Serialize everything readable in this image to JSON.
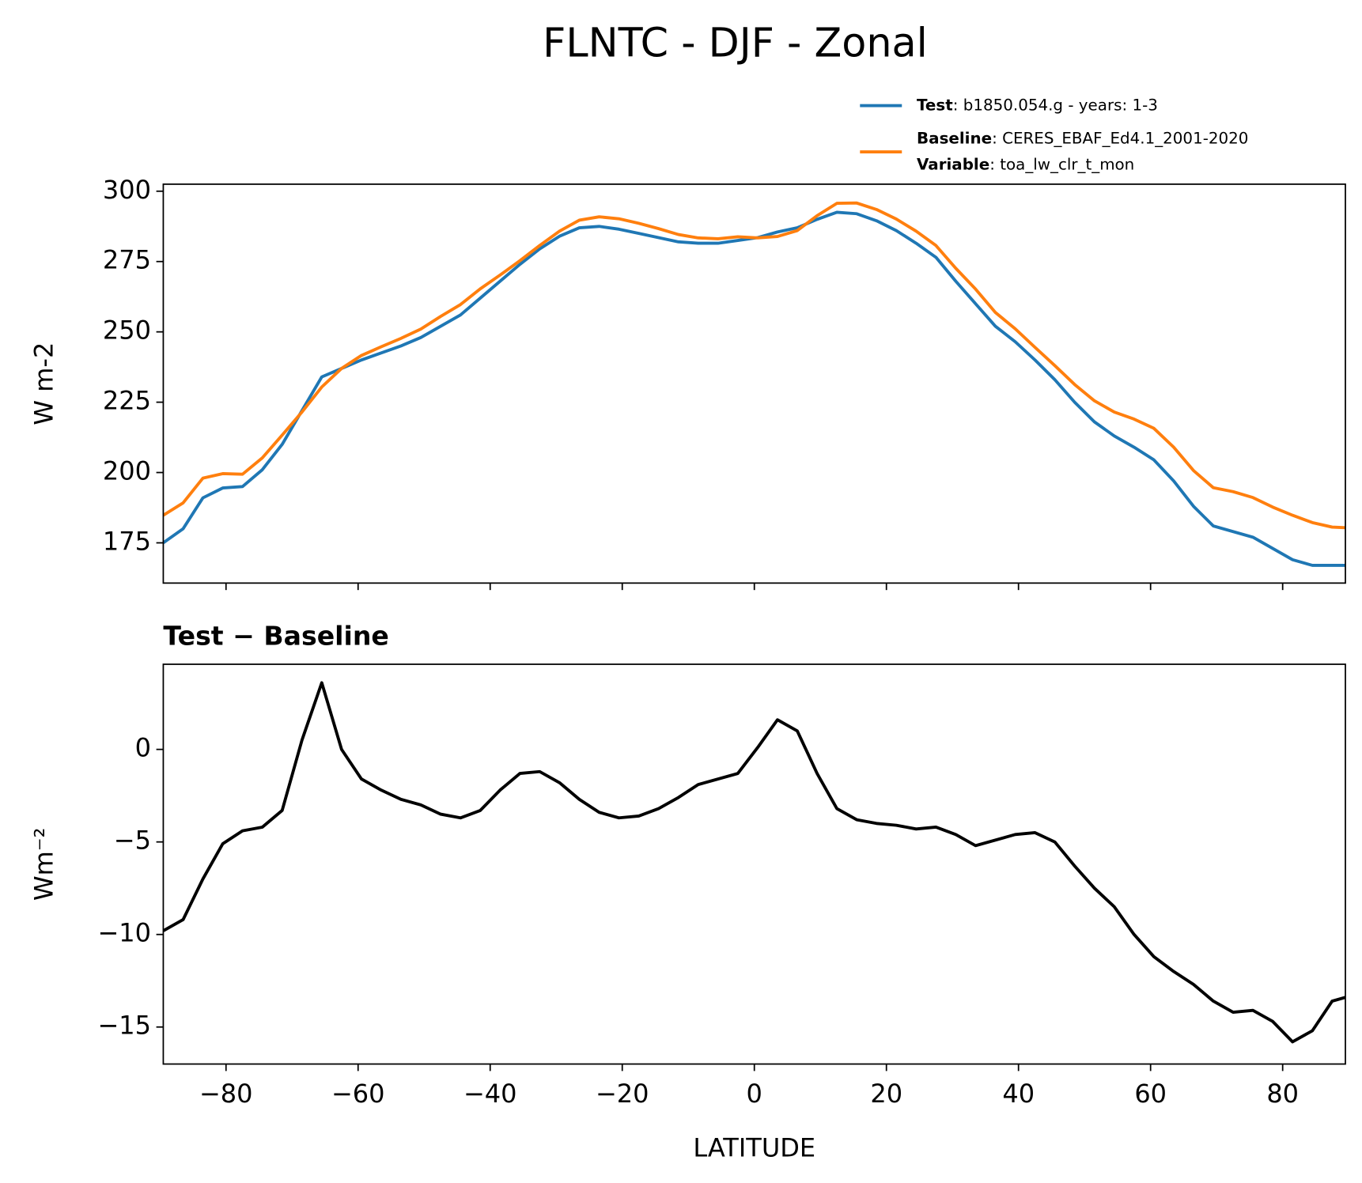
{
  "title": "FLNTC - DJF - Zonal",
  "chart_data": [
    {
      "type": "line",
      "ylabel": "W m-2",
      "x": [
        -89.5,
        -86.5,
        -83.5,
        -80.5,
        -77.5,
        -74.5,
        -71.5,
        -68.5,
        -65.5,
        -62.5,
        -59.5,
        -56.5,
        -53.5,
        -50.5,
        -47.5,
        -44.5,
        -41.5,
        -38.5,
        -35.5,
        -32.5,
        -29.5,
        -26.5,
        -23.5,
        -20.5,
        -17.5,
        -14.5,
        -11.5,
        -8.5,
        -5.5,
        -2.5,
        0.5,
        3.5,
        6.5,
        9.5,
        12.5,
        15.5,
        18.5,
        21.5,
        24.5,
        27.5,
        30.5,
        33.5,
        36.5,
        39.5,
        42.5,
        45.5,
        48.5,
        51.5,
        54.5,
        57.5,
        60.5,
        63.5,
        66.5,
        69.5,
        72.5,
        75.5,
        78.5,
        81.5,
        84.5,
        87.5,
        89.5
      ],
      "series": [
        {
          "name": "Test",
          "description": ": b1850.054.g - years: 1-3",
          "color": "#1f77b4",
          "values": [
            175,
            180,
            191,
            194.5,
            195,
            201,
            210,
            222,
            234,
            237,
            240,
            242.5,
            245,
            248,
            252,
            256,
            262,
            268,
            274,
            279.5,
            284,
            287,
            287.5,
            286.5,
            285,
            283.5,
            282,
            281.5,
            281.5,
            282.5,
            283.5,
            285.5,
            287,
            290,
            292.5,
            292,
            289.5,
            286,
            281.5,
            276.5,
            268,
            260,
            252,
            246.5,
            240,
            233,
            225,
            218,
            213,
            209,
            204.5,
            197,
            188,
            181,
            179,
            177,
            173,
            169,
            167,
            167,
            167
          ]
        },
        {
          "name": "Baseline",
          "description": ": CERES_EBAF_Ed4.1_2001-2020",
          "color": "#ff7f0e",
          "values": [
            184.8,
            189.2,
            198,
            199.6,
            199.4,
            205.2,
            213.3,
            221.5,
            230.4,
            237,
            241.6,
            244.7,
            247.7,
            251,
            255.5,
            259.7,
            265.3,
            270.2,
            275.3,
            280.7,
            285.8,
            289.7,
            290.9,
            290.2,
            288.6,
            286.7,
            284.6,
            283.4,
            283.1,
            283.8,
            283.4,
            283.9,
            286,
            291.3,
            295.7,
            295.8,
            293.5,
            290.1,
            285.8,
            280.7,
            272.6,
            265.2,
            256.9,
            251.1,
            244.5,
            238,
            231.3,
            225.5,
            221.5,
            219,
            215.7,
            209,
            200.7,
            194.6,
            193.2,
            191.1,
            187.7,
            184.8,
            182.2,
            180.6,
            180.4
          ]
        }
      ],
      "variable_label": "Variable",
      "variable": ": toa_lw_clr_t_mon",
      "xlim": [
        -89.5,
        89.5
      ],
      "xticks": [
        -80,
        -60,
        -40,
        -20,
        0,
        20,
        40,
        60,
        80
      ],
      "ylim": [
        160.7,
        302.5
      ],
      "yticks": [
        175,
        200,
        225,
        250,
        275,
        300
      ]
    },
    {
      "type": "line",
      "title": "Test − Baseline",
      "ylabel": "Wm⁻²",
      "xlabel": "LATITUDE",
      "x": [
        -89.5,
        -86.5,
        -83.5,
        -80.5,
        -77.5,
        -74.5,
        -71.5,
        -68.5,
        -65.5,
        -62.5,
        -59.5,
        -56.5,
        -53.5,
        -50.5,
        -47.5,
        -44.5,
        -41.5,
        -38.5,
        -35.5,
        -32.5,
        -29.5,
        -26.5,
        -23.5,
        -20.5,
        -17.5,
        -14.5,
        -11.5,
        -8.5,
        -5.5,
        -2.5,
        0.5,
        3.5,
        6.5,
        9.5,
        12.5,
        15.5,
        18.5,
        21.5,
        24.5,
        27.5,
        30.5,
        33.5,
        36.5,
        39.5,
        42.5,
        45.5,
        48.5,
        51.5,
        54.5,
        57.5,
        60.5,
        63.5,
        66.5,
        69.5,
        72.5,
        75.5,
        78.5,
        81.5,
        84.5,
        87.5,
        89.5
      ],
      "series": [
        {
          "color": "#000000",
          "values": [
            -9.8,
            -9.2,
            -7,
            -5.1,
            -4.4,
            -4.2,
            -3.3,
            0.5,
            3.6,
            0,
            -1.6,
            -2.2,
            -2.7,
            -3,
            -3.5,
            -3.7,
            -3.3,
            -2.2,
            -1.3,
            -1.2,
            -1.8,
            -2.7,
            -3.4,
            -3.7,
            -3.6,
            -3.2,
            -2.6,
            -1.9,
            -1.6,
            -1.3,
            0.1,
            1.6,
            1,
            -1.3,
            -3.2,
            -3.8,
            -4,
            -4.1,
            -4.3,
            -4.2,
            -4.6,
            -5.2,
            -4.9,
            -4.6,
            -4.5,
            -5,
            -6.3,
            -7.5,
            -8.5,
            -10,
            -11.2,
            -12,
            -12.7,
            -13.6,
            -14.2,
            -14.1,
            -14.7,
            -15.8,
            -15.2,
            -13.6,
            -13.4
          ]
        }
      ],
      "xlim": [
        -89.5,
        89.5
      ],
      "xticks": [
        {
          "value": -80,
          "label": "−80"
        },
        {
          "value": -60,
          "label": "−60"
        },
        {
          "value": -40,
          "label": "−40"
        },
        {
          "value": -20,
          "label": "−20"
        },
        0,
        20,
        40,
        60,
        80
      ],
      "ylim": [
        -17,
        4.6
      ],
      "yticks": [
        {
          "value": -15,
          "label": "−15"
        },
        {
          "value": -10,
          "label": "−10"
        },
        {
          "value": -5,
          "label": "−5"
        },
        0
      ]
    }
  ]
}
